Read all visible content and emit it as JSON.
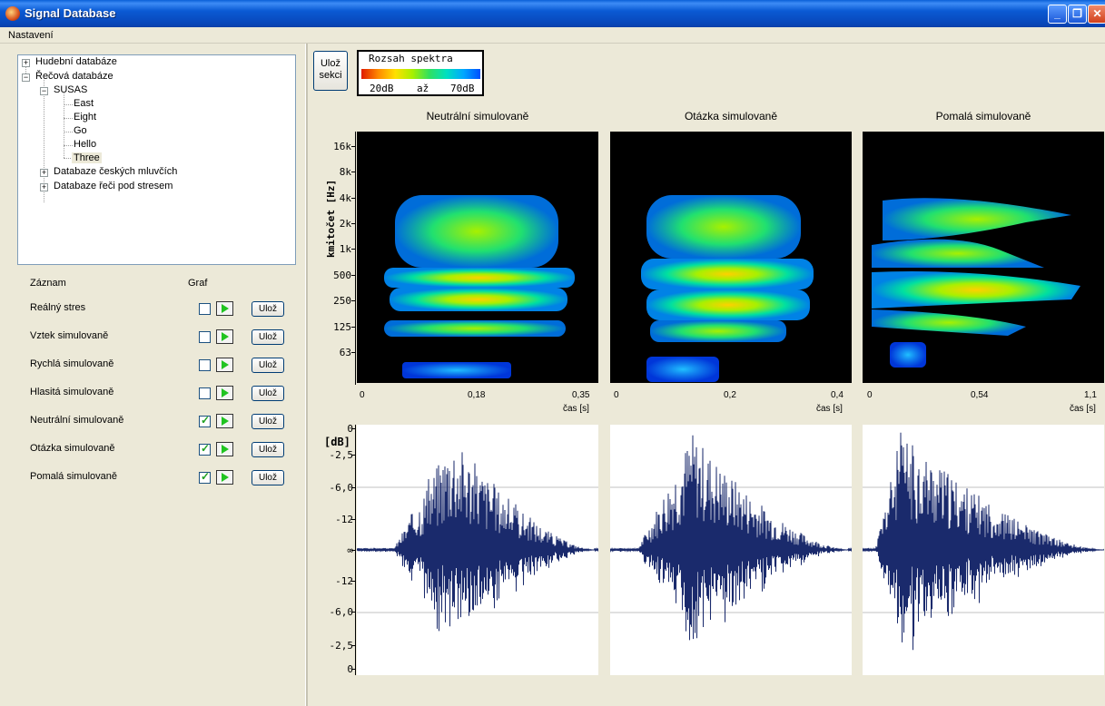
{
  "window": {
    "title": "Signal Database"
  },
  "menu": {
    "items": [
      "Nastavení"
    ]
  },
  "tree": {
    "nodes": [
      {
        "label": "Hudební databáze",
        "expander": "+"
      },
      {
        "label": "Řečová databáze",
        "expander": "−"
      },
      {
        "label": "SUSAS",
        "expander": "−"
      },
      {
        "label": "East"
      },
      {
        "label": "Eight"
      },
      {
        "label": "Go"
      },
      {
        "label": "Hello"
      },
      {
        "label": "Three",
        "selected": true
      },
      {
        "label": "Databaze českých mluvčích",
        "expander": "+"
      },
      {
        "label": "Databaze řeči pod stresem",
        "expander": "+"
      }
    ]
  },
  "records": {
    "header_record": "Záznam",
    "header_graph": "Graf",
    "save_label": "Ulož",
    "rows": [
      {
        "label": "Reálný stres",
        "checked": false
      },
      {
        "label": "Vztek simulovaně",
        "checked": false
      },
      {
        "label": "Rychlá simulovaně",
        "checked": false
      },
      {
        "label": "Hlasitá simulovaně",
        "checked": false
      },
      {
        "label": "Neutrální simulovaně",
        "checked": true
      },
      {
        "label": "Otázka simulovaně",
        "checked": true
      },
      {
        "label": "Pomalá simulovaně",
        "checked": true
      }
    ]
  },
  "toolbar": {
    "save_section_line1": "Ulož",
    "save_section_line2": "sekci"
  },
  "legend": {
    "title": "Rozsah spektra",
    "min": "20dB",
    "mid": "až",
    "max": "70dB"
  },
  "spectrogram_axis": {
    "ylabel": "kmitočet [Hz]",
    "yticks": [
      "16k",
      "8k",
      "4k",
      "2k",
      "1k",
      "500",
      "250",
      "125",
      "63"
    ],
    "xunit": "čas [s]"
  },
  "waveform_axis": {
    "ylabel": "[dB]",
    "yticks": [
      "0",
      "-2,5",
      "-6,0",
      "-12",
      "∞",
      "-12",
      "-6,0",
      "-2,5",
      "0"
    ]
  },
  "charts": [
    {
      "title": "Neutrální simulovaně",
      "x0": "0",
      "xmid": "0,18",
      "xmax": "0,35"
    },
    {
      "title": "Otázka simulovaně",
      "x0": "0",
      "xmid": "0,2",
      "xmax": "0,4"
    },
    {
      "title": "Pomalá simulovaně",
      "x0": "0",
      "xmid": "0,54",
      "xmax": "1,1"
    }
  ],
  "colors": {
    "titlebar": "#0a5ad4",
    "window_bg": "#ece9d8",
    "wave": "#1a2a6c",
    "spec_bg": "#000000"
  }
}
